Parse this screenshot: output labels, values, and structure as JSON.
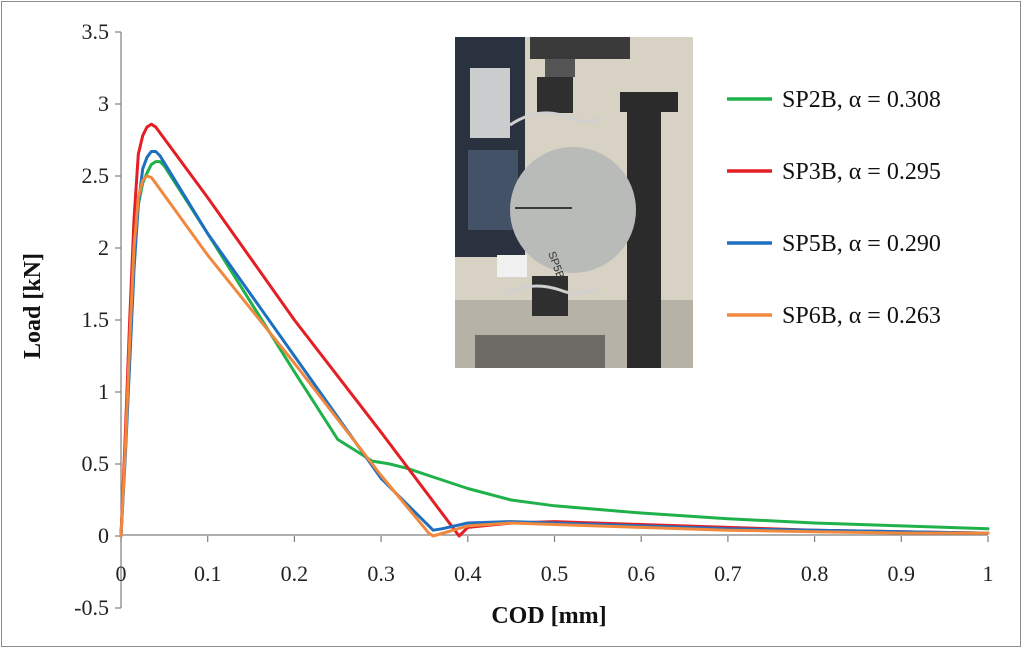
{
  "chart_data": {
    "type": "line",
    "xlabel": "COD [mm]",
    "ylabel": "Load [kN]",
    "xlim": [
      0,
      1
    ],
    "ylim": [
      -0.5,
      3.5
    ],
    "x_ticks": [
      "0",
      "0.1",
      "0.2",
      "0.3",
      "0.4",
      "0.5",
      "0.6",
      "0.7",
      "0.8",
      "0.9",
      "1"
    ],
    "y_ticks": [
      "3.5",
      "3",
      "2.5",
      "2",
      "1.5",
      "1",
      "0.5",
      "0",
      "-0.5"
    ],
    "grid": false,
    "legend_position": "right",
    "series": [
      {
        "name": "SP2B, α = 0.308",
        "color": "#1fb14a",
        "x": [
          0,
          0.005,
          0.01,
          0.015,
          0.02,
          0.025,
          0.03,
          0.035,
          0.04,
          0.045,
          0.05,
          0.1,
          0.15,
          0.2,
          0.25,
          0.29,
          0.31,
          0.33,
          0.36,
          0.4,
          0.45,
          0.5,
          0.6,
          0.7,
          0.8,
          0.9,
          1.0
        ],
        "y": [
          0,
          0.6,
          1.3,
          1.9,
          2.3,
          2.45,
          2.52,
          2.58,
          2.6,
          2.6,
          2.57,
          2.1,
          1.62,
          1.14,
          0.67,
          0.52,
          0.5,
          0.47,
          0.41,
          0.33,
          0.25,
          0.21,
          0.16,
          0.12,
          0.09,
          0.07,
          0.05
        ]
      },
      {
        "name": "SP3B, α = 0.295",
        "color": "#e31e24",
        "x": [
          0,
          0.005,
          0.01,
          0.015,
          0.02,
          0.025,
          0.03,
          0.035,
          0.04,
          0.1,
          0.2,
          0.3,
          0.38,
          0.39,
          0.4,
          0.45,
          0.5,
          0.6,
          0.7,
          0.8,
          0.9,
          1.0
        ],
        "y": [
          0,
          0.7,
          1.5,
          2.2,
          2.65,
          2.78,
          2.84,
          2.86,
          2.84,
          2.35,
          1.5,
          0.72,
          0.08,
          0.0,
          0.06,
          0.09,
          0.1,
          0.08,
          0.06,
          0.04,
          0.03,
          0.02
        ]
      },
      {
        "name": "SP5B, α = 0.290",
        "color": "#1f6fc0",
        "x": [
          0,
          0.005,
          0.01,
          0.015,
          0.02,
          0.025,
          0.03,
          0.035,
          0.04,
          0.045,
          0.1,
          0.2,
          0.3,
          0.36,
          0.37,
          0.4,
          0.45,
          0.5,
          0.6,
          0.7,
          0.8,
          0.9,
          1.0
        ],
        "y": [
          0,
          0.55,
          1.2,
          1.85,
          2.3,
          2.55,
          2.63,
          2.67,
          2.67,
          2.64,
          2.1,
          1.25,
          0.4,
          0.04,
          0.05,
          0.09,
          0.1,
          0.09,
          0.07,
          0.05,
          0.04,
          0.03,
          0.02
        ]
      },
      {
        "name": "SP6B, α = 0.263",
        "color": "#f0883e",
        "x": [
          0,
          0.005,
          0.01,
          0.015,
          0.02,
          0.025,
          0.03,
          0.035,
          0.04,
          0.1,
          0.2,
          0.3,
          0.355,
          0.36,
          0.4,
          0.45,
          0.5,
          0.6,
          0.7,
          0.8,
          0.9,
          1.0
        ],
        "y": [
          0,
          0.6,
          1.35,
          2.0,
          2.35,
          2.47,
          2.5,
          2.49,
          2.45,
          1.95,
          1.2,
          0.42,
          0.02,
          0.0,
          0.07,
          0.09,
          0.08,
          0.06,
          0.04,
          0.03,
          0.02,
          0.02
        ]
      }
    ]
  },
  "photo": {
    "icon": "specimen-photo",
    "specimen_label": "SP5B",
    "colors": {
      "wall": "#d8d2c4",
      "panel": "#2a3240",
      "specimen": "#b9bbb8",
      "machine": "#2b2b2b"
    }
  }
}
